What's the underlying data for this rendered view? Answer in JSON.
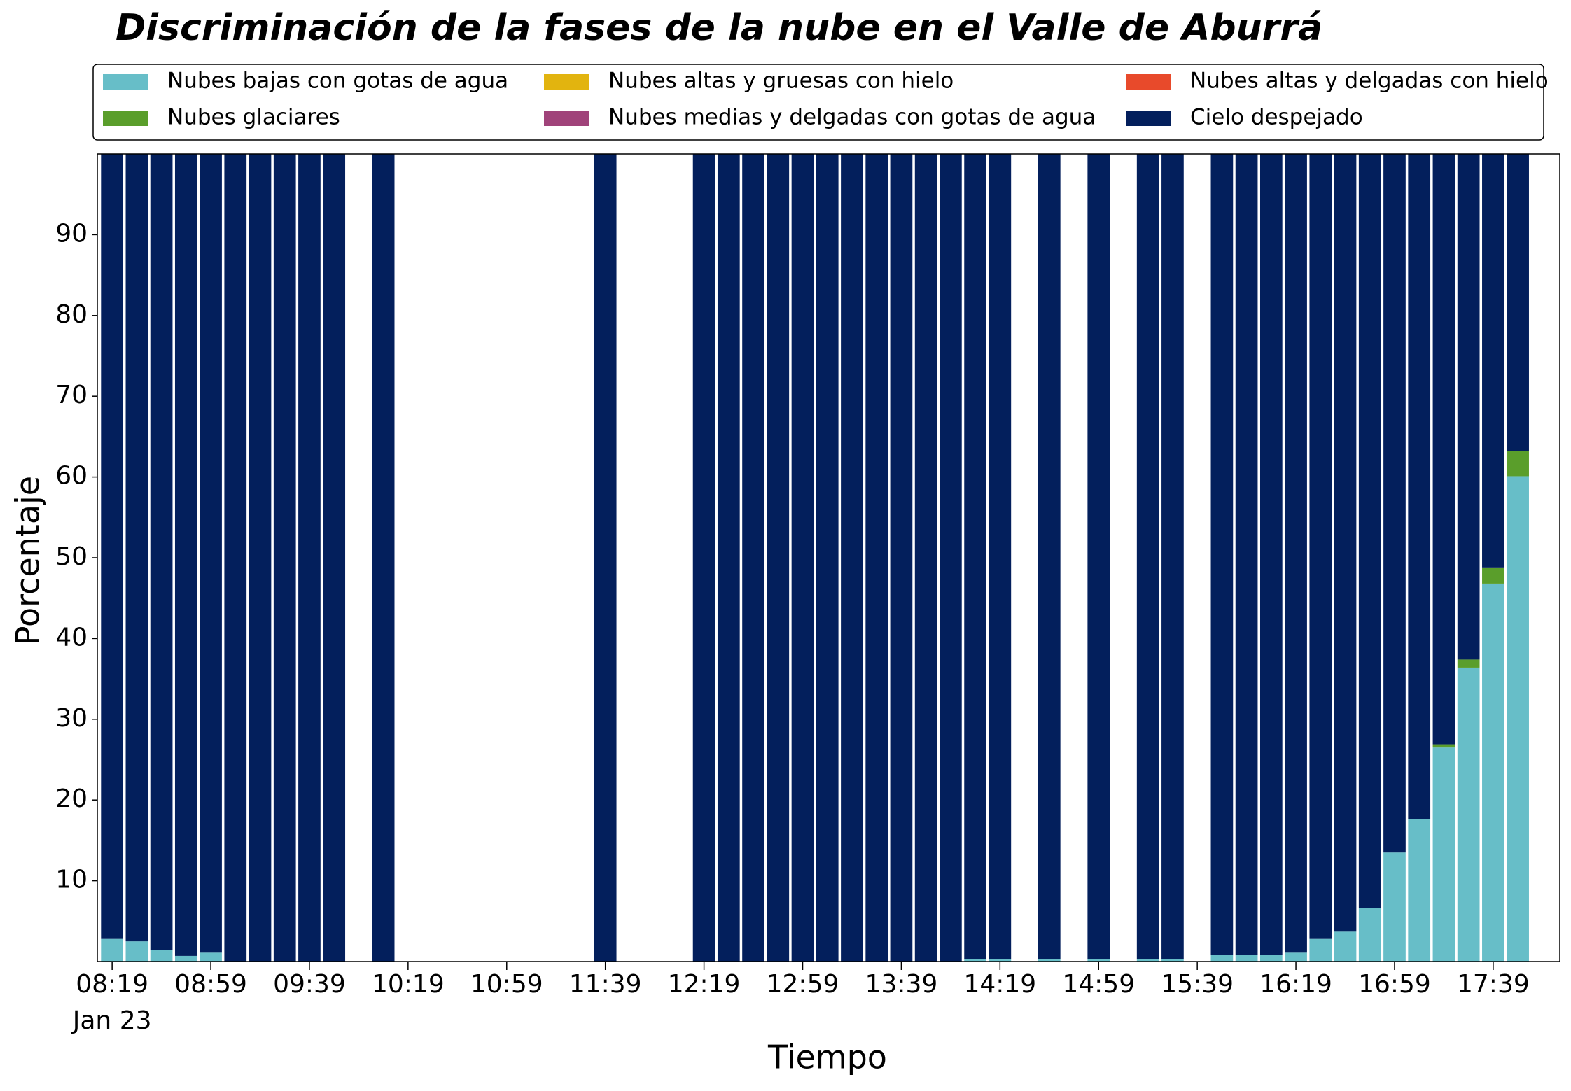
{
  "chart_data": {
    "type": "stacked_bar",
    "title": "Discriminación de la fases de la nube en el Valle de Aburrá",
    "x_label": "Tiempo",
    "y_label": "Porcentaje",
    "x": [
      "08:19",
      "08:29",
      "08:39",
      "08:49",
      "08:59",
      "09:09",
      "09:19",
      "09:29",
      "09:39",
      "09:49",
      "10:09",
      "11:39",
      "12:19",
      "12:29",
      "12:39",
      "12:49",
      "12:59",
      "13:09",
      "13:19",
      "13:29",
      "13:39",
      "13:49",
      "13:59",
      "14:09",
      "14:19",
      "14:39",
      "14:59",
      "15:19",
      "15:29",
      "15:49",
      "15:59",
      "16:09",
      "16:19",
      "16:29",
      "16:39",
      "16:49",
      "16:59",
      "17:09",
      "17:19",
      "17:29",
      "17:39",
      "17:49"
    ],
    "x_date_label": "Jan 23",
    "xlim": [
      "08:13",
      "18:06"
    ],
    "xticks": [
      "08:19",
      "08:59",
      "09:39",
      "10:19",
      "10:59",
      "11:39",
      "12:19",
      "12:59",
      "13:39",
      "14:19",
      "14:59",
      "15:39",
      "16:19",
      "16:59",
      "17:39"
    ],
    "ylim": [
      0,
      100
    ],
    "yticks": [
      10,
      20,
      30,
      40,
      50,
      60,
      70,
      80,
      90
    ],
    "legend_columns": 3,
    "series": [
      {
        "name": "Nubes bajas con gotas de agua",
        "color": "#67bec8",
        "values": [
          2.8,
          2.5,
          1.4,
          0.7,
          1.1,
          0,
          0,
          0,
          0,
          0,
          0,
          0,
          0,
          0,
          0,
          0,
          0,
          0,
          0,
          0,
          0,
          0,
          0,
          0.3,
          0.3,
          0.3,
          0.3,
          0.3,
          0.3,
          0.8,
          0.8,
          0.8,
          1.1,
          2.8,
          3.7,
          6.6,
          13.5,
          17.6,
          26.5,
          36.4,
          46.8,
          60.1
        ]
      },
      {
        "name": "Nubes glaciares",
        "color": "#5a9e2b",
        "values": [
          0,
          0,
          0,
          0,
          0,
          0,
          0,
          0,
          0,
          0,
          0,
          0,
          0,
          0,
          0,
          0,
          0,
          0,
          0,
          0,
          0,
          0,
          0,
          0,
          0,
          0,
          0,
          0,
          0,
          0,
          0,
          0,
          0,
          0,
          0,
          0,
          0,
          0,
          0.4,
          1.0,
          2.0,
          3.1
        ]
      },
      {
        "name": "Nubes altas y gruesas con hielo",
        "color": "#e2b40f",
        "values": [
          0,
          0,
          0,
          0,
          0,
          0,
          0,
          0,
          0,
          0,
          0,
          0,
          0,
          0,
          0,
          0,
          0,
          0,
          0,
          0,
          0,
          0,
          0,
          0,
          0,
          0,
          0,
          0,
          0,
          0,
          0,
          0,
          0,
          0,
          0,
          0,
          0,
          0,
          0,
          0,
          0,
          0
        ]
      },
      {
        "name": "Nubes medias y delgadas con gotas de agua",
        "color": "#a0437a",
        "values": [
          0,
          0,
          0,
          0,
          0,
          0,
          0,
          0,
          0,
          0,
          0,
          0,
          0,
          0,
          0,
          0,
          0,
          0,
          0,
          0,
          0,
          0,
          0,
          0,
          0,
          0,
          0,
          0,
          0,
          0,
          0,
          0,
          0,
          0,
          0,
          0,
          0,
          0,
          0,
          0,
          0,
          0
        ]
      },
      {
        "name": "Nubes altas y delgadas con hielo",
        "color": "#e84a2b",
        "values": [
          0,
          0,
          0,
          0,
          0,
          0,
          0,
          0,
          0,
          0,
          0,
          0,
          0,
          0,
          0,
          0,
          0,
          0,
          0,
          0,
          0,
          0,
          0,
          0,
          0,
          0,
          0,
          0,
          0,
          0,
          0,
          0,
          0,
          0,
          0,
          0,
          0,
          0,
          0,
          0,
          0,
          0
        ]
      },
      {
        "name": "Cielo despejado",
        "color": "#031f5c",
        "values": [
          97.2,
          97.5,
          98.6,
          99.3,
          98.9,
          100,
          100,
          100,
          100,
          100,
          100,
          100,
          100,
          100,
          100,
          100,
          100,
          100,
          100,
          100,
          100,
          100,
          100,
          99.7,
          99.7,
          99.7,
          99.7,
          99.7,
          99.7,
          99.2,
          99.2,
          99.2,
          98.9,
          97.2,
          96.3,
          93.4,
          86.5,
          82.4,
          73.1,
          62.6,
          51.2,
          36.8
        ]
      }
    ]
  }
}
